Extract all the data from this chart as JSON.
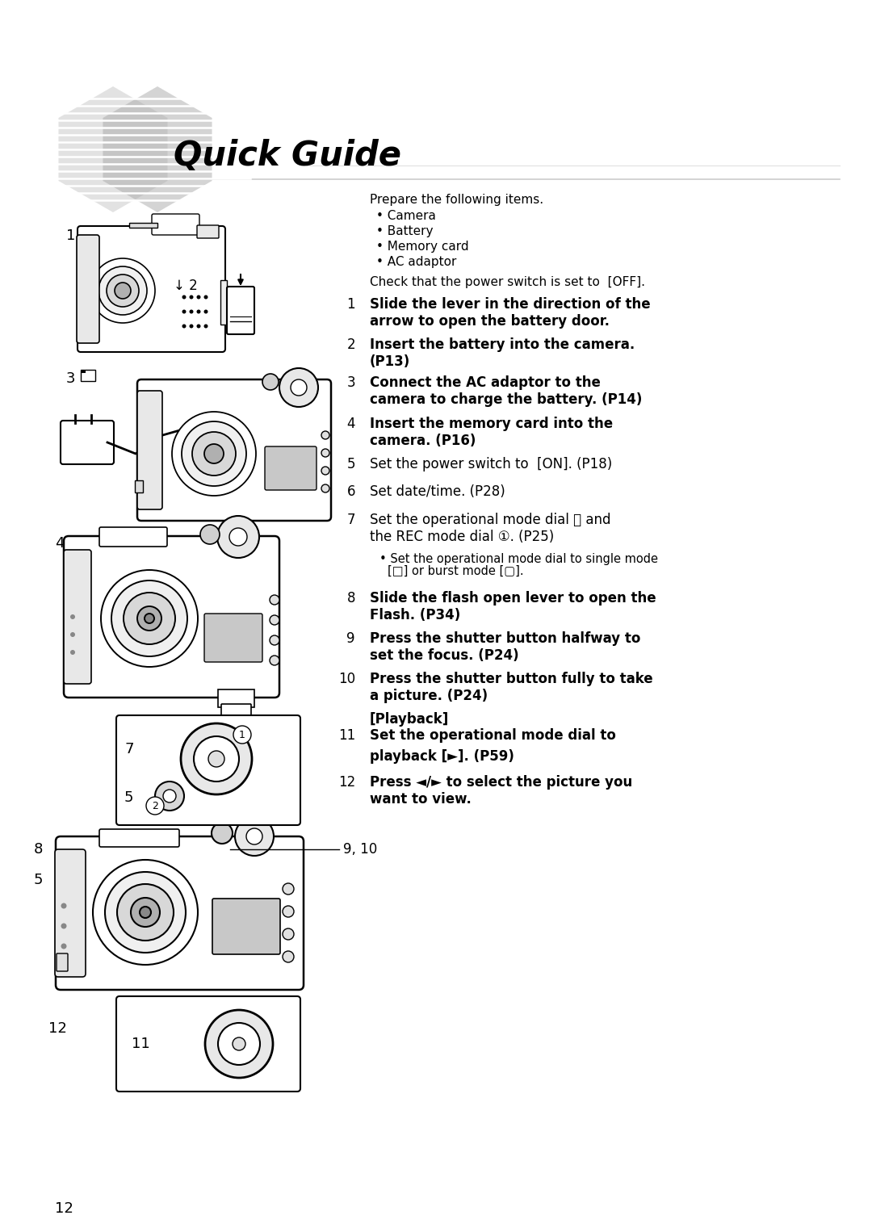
{
  "bg_color": "#ffffff",
  "title": "Quick Guide",
  "page_number": "12",
  "prepare_text": "Prepare the following items.",
  "prepare_items": [
    "Camera",
    "Battery",
    "Memory card",
    "AC adaptor"
  ],
  "check_text": "Check that the power switch is set to  [OFF].",
  "step1_bold": "Slide the lever in the direction of the\narrow to open the battery door.",
  "step2_bold": "Insert the battery into the camera.\n(P13)",
  "step3_bold": "Connect the AC adaptor to the\ncamera to charge the battery. (P14)",
  "step4_norm": "Insert the memory card into the\ncamera. (P16)",
  "step5_norm": "Set the power switch to  [ON]. (P18)",
  "step6_norm": "Set date/time. (P28)",
  "step7_norm": "Set the operational mode dial Ⓐ and\nthe REC mode dial ①. (P25)",
  "step7_sub1": "• Set the operational mode dial to single mode",
  "step7_sub2": "[□] or burst mode [▢].",
  "step8_bold": "Slide the flash open lever to open the\nFlash. (P34)",
  "step9_bold": "Press the shutter button halfway to\nset the focus. (P24)",
  "step10_bold": "Press the shutter button fully to take\na picture. (P24)",
  "playback_label": "[Playback]",
  "step11_bold1": "Set the operational mode dial to",
  "step11_bold2": "playback [►]. (P59)",
  "step12_bold": "Press ◄/► to select the picture you\nwant to view.",
  "hex_light": "#d0d0d0",
  "hex_dark": "#aaaaaa",
  "line_color": "#cccccc"
}
